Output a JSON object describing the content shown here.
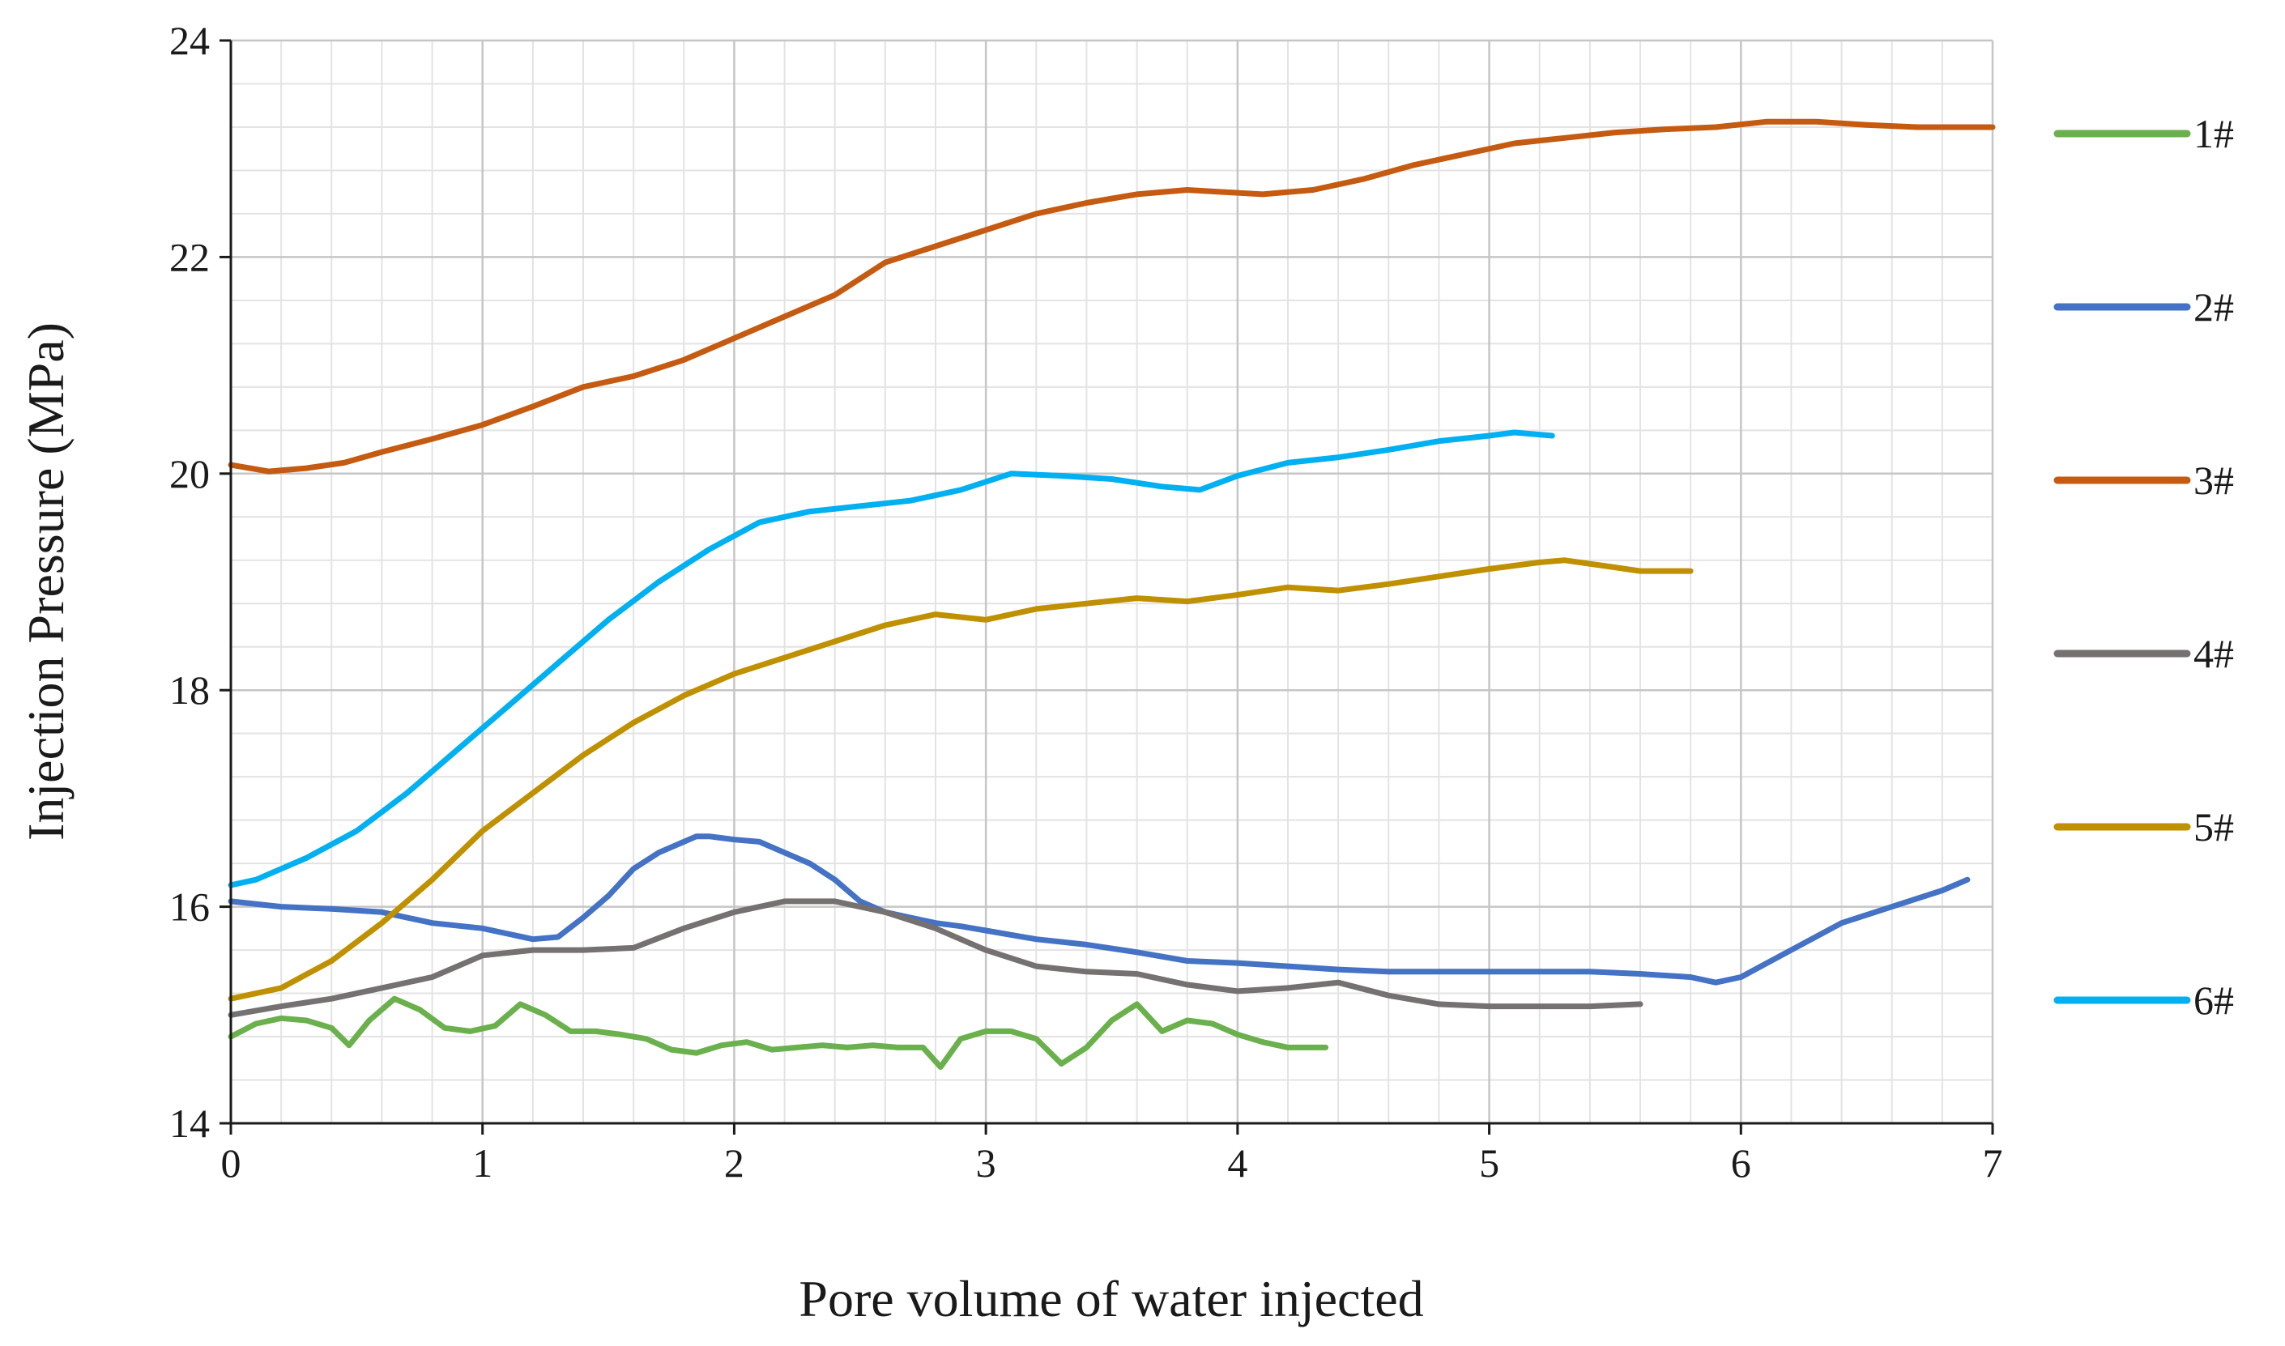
{
  "chart_data": {
    "type": "line",
    "title": "",
    "xlabel": "Pore volume of water injected",
    "ylabel": "Injection Pressure (MPa)",
    "xlim": [
      0,
      7
    ],
    "ylim": [
      14,
      24
    ],
    "xticks": [
      0,
      1,
      2,
      3,
      4,
      5,
      6,
      7
    ],
    "yticks": [
      14,
      16,
      18,
      20,
      22,
      24
    ],
    "x_minor_step": 0.2,
    "y_minor_step": 0.4,
    "grid": true,
    "legend_position": "right",
    "series": [
      {
        "name": "1#",
        "color": "#6ab04c",
        "x": [
          0,
          0.1,
          0.2,
          0.3,
          0.4,
          0.47,
          0.55,
          0.65,
          0.75,
          0.85,
          0.95,
          1.05,
          1.15,
          1.25,
          1.35,
          1.45,
          1.55,
          1.65,
          1.75,
          1.85,
          1.95,
          2.05,
          2.15,
          2.25,
          2.35,
          2.45,
          2.55,
          2.65,
          2.75,
          2.82,
          2.9,
          3.0,
          3.1,
          3.2,
          3.3,
          3.4,
          3.5,
          3.6,
          3.7,
          3.8,
          3.9,
          4.0,
          4.1,
          4.2,
          4.35
        ],
        "y": [
          14.8,
          14.92,
          14.97,
          14.95,
          14.88,
          14.72,
          14.95,
          15.15,
          15.05,
          14.88,
          14.85,
          14.9,
          15.1,
          15.0,
          14.85,
          14.85,
          14.82,
          14.78,
          14.68,
          14.65,
          14.72,
          14.75,
          14.68,
          14.7,
          14.72,
          14.7,
          14.72,
          14.7,
          14.7,
          14.52,
          14.78,
          14.85,
          14.85,
          14.78,
          14.55,
          14.7,
          14.95,
          15.1,
          14.85,
          14.95,
          14.92,
          14.82,
          14.75,
          14.7,
          14.7
        ]
      },
      {
        "name": "2#",
        "color": "#4472c4",
        "x": [
          0,
          0.2,
          0.4,
          0.6,
          0.8,
          1.0,
          1.1,
          1.2,
          1.3,
          1.4,
          1.5,
          1.6,
          1.7,
          1.8,
          1.85,
          1.9,
          2.0,
          2.1,
          2.2,
          2.3,
          2.4,
          2.5,
          2.6,
          2.7,
          2.8,
          2.9,
          3.0,
          3.2,
          3.4,
          3.6,
          3.8,
          4.0,
          4.2,
          4.4,
          4.6,
          4.8,
          5.0,
          5.2,
          5.4,
          5.6,
          5.8,
          5.9,
          6.0,
          6.2,
          6.4,
          6.6,
          6.8,
          6.9
        ],
        "y": [
          16.05,
          16.0,
          15.98,
          15.95,
          15.85,
          15.8,
          15.75,
          15.7,
          15.72,
          15.9,
          16.1,
          16.35,
          16.5,
          16.6,
          16.65,
          16.65,
          16.62,
          16.6,
          16.5,
          16.4,
          16.25,
          16.05,
          15.95,
          15.9,
          15.85,
          15.82,
          15.78,
          15.7,
          15.65,
          15.58,
          15.5,
          15.48,
          15.45,
          15.42,
          15.4,
          15.4,
          15.4,
          15.4,
          15.4,
          15.38,
          15.35,
          15.3,
          15.35,
          15.6,
          15.85,
          16.0,
          16.15,
          16.25
        ]
      },
      {
        "name": "3#",
        "color": "#c55a11",
        "x": [
          0,
          0.15,
          0.3,
          0.45,
          0.6,
          0.8,
          1.0,
          1.2,
          1.4,
          1.6,
          1.8,
          2.0,
          2.2,
          2.4,
          2.6,
          2.8,
          3.0,
          3.2,
          3.4,
          3.6,
          3.8,
          3.95,
          4.1,
          4.3,
          4.5,
          4.7,
          4.9,
          5.1,
          5.3,
          5.5,
          5.7,
          5.9,
          6.1,
          6.3,
          6.5,
          6.7,
          7.0
        ],
        "y": [
          20.08,
          20.02,
          20.05,
          20.1,
          20.2,
          20.32,
          20.45,
          20.62,
          20.8,
          20.9,
          21.05,
          21.25,
          21.45,
          21.65,
          21.95,
          22.1,
          22.25,
          22.4,
          22.5,
          22.58,
          22.62,
          22.6,
          22.58,
          22.62,
          22.72,
          22.85,
          22.95,
          23.05,
          23.1,
          23.15,
          23.18,
          23.2,
          23.25,
          23.25,
          23.22,
          23.2,
          23.2
        ]
      },
      {
        "name": "4#",
        "color": "#767171",
        "x": [
          0,
          0.2,
          0.4,
          0.6,
          0.8,
          1.0,
          1.2,
          1.4,
          1.6,
          1.8,
          2.0,
          2.2,
          2.4,
          2.6,
          2.8,
          3.0,
          3.2,
          3.4,
          3.6,
          3.8,
          4.0,
          4.2,
          4.4,
          4.6,
          4.8,
          5.0,
          5.2,
          5.4,
          5.6
        ],
        "y": [
          15.0,
          15.08,
          15.15,
          15.25,
          15.35,
          15.55,
          15.6,
          15.6,
          15.62,
          15.8,
          15.95,
          16.05,
          16.05,
          15.95,
          15.8,
          15.6,
          15.45,
          15.4,
          15.38,
          15.28,
          15.22,
          15.25,
          15.3,
          15.18,
          15.1,
          15.08,
          15.08,
          15.08,
          15.1
        ]
      },
      {
        "name": "5#",
        "color": "#bf9000",
        "x": [
          0,
          0.2,
          0.4,
          0.6,
          0.8,
          1.0,
          1.2,
          1.4,
          1.6,
          1.8,
          2.0,
          2.2,
          2.4,
          2.6,
          2.8,
          3.0,
          3.2,
          3.4,
          3.6,
          3.8,
          4.0,
          4.2,
          4.4,
          4.6,
          4.8,
          5.0,
          5.2,
          5.3,
          5.45,
          5.6,
          5.8
        ],
        "y": [
          15.15,
          15.25,
          15.5,
          15.85,
          16.25,
          16.7,
          17.05,
          17.4,
          17.7,
          17.95,
          18.15,
          18.3,
          18.45,
          18.6,
          18.7,
          18.65,
          18.75,
          18.8,
          18.85,
          18.82,
          18.88,
          18.95,
          18.92,
          18.98,
          19.05,
          19.12,
          19.18,
          19.2,
          19.15,
          19.1,
          19.1
        ]
      },
      {
        "name": "6#",
        "color": "#00b0f0",
        "x": [
          0,
          0.1,
          0.3,
          0.5,
          0.7,
          0.9,
          1.1,
          1.3,
          1.5,
          1.7,
          1.9,
          2.1,
          2.3,
          2.5,
          2.7,
          2.9,
          3.1,
          3.3,
          3.5,
          3.7,
          3.85,
          4.0,
          4.2,
          4.4,
          4.6,
          4.8,
          5.0,
          5.1,
          5.25
        ],
        "y": [
          16.2,
          16.25,
          16.45,
          16.7,
          17.05,
          17.45,
          17.85,
          18.25,
          18.65,
          19.0,
          19.3,
          19.55,
          19.65,
          19.7,
          19.75,
          19.85,
          20.0,
          19.98,
          19.95,
          19.88,
          19.85,
          19.98,
          20.1,
          20.15,
          20.22,
          20.3,
          20.35,
          20.38,
          20.35
        ]
      }
    ]
  }
}
